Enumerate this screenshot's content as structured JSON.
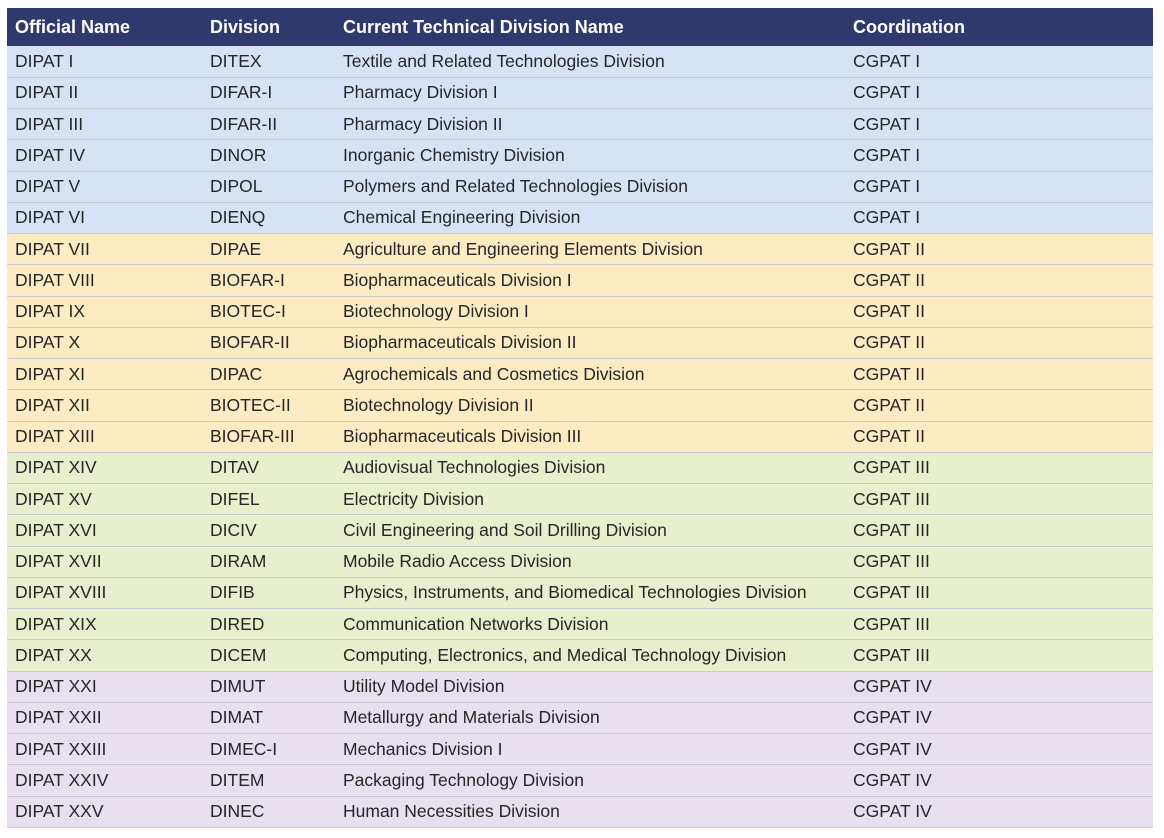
{
  "table": {
    "headers": [
      "Official Name",
      "Division",
      "Current Technical Division Name",
      "Coordination"
    ],
    "group_colors": {
      "CGPAT I": "#d7e3f5",
      "CGPAT II": "#fdebc4",
      "CGPAT III": "#e7efcc",
      "CGPAT IV": "#e9e0ef"
    },
    "header_color": "#2e3a6e",
    "rows": [
      [
        "DIPAT I",
        "DITEX",
        "Textile and Related Technologies Division",
        "CGPAT I"
      ],
      [
        "DIPAT II",
        "DIFAR-I",
        "Pharmacy Division I",
        "CGPAT I"
      ],
      [
        "DIPAT III",
        "DIFAR-II",
        "Pharmacy Division II",
        "CGPAT I"
      ],
      [
        "DIPAT IV",
        "DINOR",
        "Inorganic Chemistry Division",
        "CGPAT I"
      ],
      [
        "DIPAT V",
        "DIPOL",
        "Polymers and Related Technologies Division",
        "CGPAT I"
      ],
      [
        "DIPAT VI",
        "DIENQ",
        "Chemical Engineering Division",
        "CGPAT I"
      ],
      [
        "DIPAT VII",
        "DIPAE",
        "Agriculture and Engineering Elements Division",
        "CGPAT II"
      ],
      [
        "DIPAT VIII",
        "BIOFAR-I",
        "Biopharmaceuticals Division I",
        "CGPAT II"
      ],
      [
        "DIPAT IX",
        "BIOTEC-I",
        "Biotechnology Division I",
        "CGPAT II"
      ],
      [
        "DIPAT X",
        "BIOFAR-II",
        "Biopharmaceuticals Division II",
        "CGPAT II"
      ],
      [
        "DIPAT XI",
        "DIPAC",
        "Agrochemicals and Cosmetics Division",
        "CGPAT II"
      ],
      [
        "DIPAT XII",
        "BIOTEC-II",
        "Biotechnology Division II",
        "CGPAT II"
      ],
      [
        "DIPAT XIII",
        "BIOFAR-III",
        "Biopharmaceuticals Division III",
        "CGPAT II"
      ],
      [
        "DIPAT XIV",
        "DITAV",
        "Audiovisual Technologies Division",
        "CGPAT III"
      ],
      [
        "DIPAT XV",
        "DIFEL",
        "Electricity Division",
        "CGPAT III"
      ],
      [
        "DIPAT XVI",
        "DICIV",
        "Civil Engineering and Soil Drilling Division",
        "CGPAT III"
      ],
      [
        "DIPAT XVII",
        "DIRAM",
        "Mobile Radio Access Division",
        "CGPAT III"
      ],
      [
        "DIPAT XVIII",
        "DIFIB",
        "Physics, Instruments, and Biomedical Technologies Division",
        "CGPAT III"
      ],
      [
        "DIPAT XIX",
        "DIRED",
        "Communication Networks Division",
        "CGPAT III"
      ],
      [
        "DIPAT XX",
        "DICEM",
        "Computing, Electronics, and Medical Technology Division",
        "CGPAT III"
      ],
      [
        "DIPAT XXI",
        "DIMUT",
        "Utility Model Division",
        "CGPAT IV"
      ],
      [
        "DIPAT XXII",
        "DIMAT",
        "Metallurgy and Materials Division",
        "CGPAT IV"
      ],
      [
        "DIPAT XXIII",
        "DIMEC-I",
        "Mechanics Division I",
        "CGPAT IV"
      ],
      [
        "DIPAT XXIV",
        "DITEM",
        "Packaging Technology Division",
        "CGPAT IV"
      ],
      [
        "DIPAT XXV",
        "DINEC",
        "Human Necessities Division",
        "CGPAT IV"
      ]
    ]
  }
}
